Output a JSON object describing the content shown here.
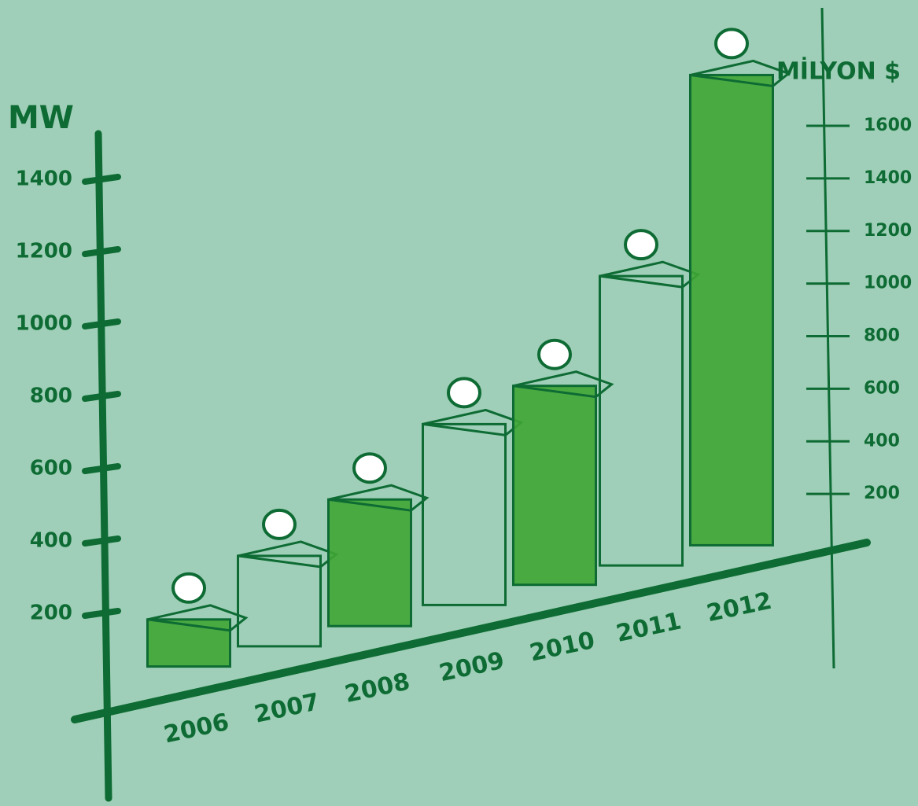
{
  "chart_data": {
    "type": "bar",
    "y_label": "MW",
    "y2_label": "MİLYON $",
    "categories": [
      "2006",
      "2007",
      "2008",
      "2009",
      "2010",
      "2011",
      "2012"
    ],
    "values": [
      130,
      250,
      350,
      500,
      550,
      800,
      1300
    ],
    "color": "#3fa535",
    "ylim": [
      0,
      1600
    ],
    "yticks": [
      200,
      400,
      600,
      800,
      1000,
      1200,
      1400
    ],
    "y2lim": [
      0,
      1600
    ],
    "y2ticks": [
      200,
      400,
      600,
      800,
      1000,
      1200,
      1400,
      1600
    ]
  }
}
